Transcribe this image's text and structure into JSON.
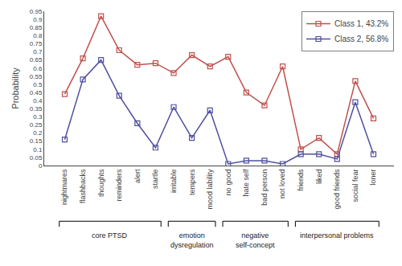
{
  "chart_data": {
    "type": "line",
    "categories": [
      "nightmares",
      "flashbacks",
      "thoughts",
      "reminders",
      "alert",
      "startle",
      "irritable",
      "tempers",
      "mood lability",
      "no good",
      "hate self",
      "bad person",
      "not loved",
      "friends",
      "liked",
      "good friends",
      "social fear",
      "loner"
    ],
    "series": [
      {
        "name": "Class 1, 43.2%",
        "color": "#c0504d",
        "marker": "square",
        "values": [
          0.44,
          0.66,
          0.92,
          0.71,
          0.62,
          0.63,
          0.57,
          0.68,
          0.61,
          0.67,
          0.45,
          0.37,
          0.61,
          0.1,
          0.17,
          0.07,
          0.52,
          0.29
        ]
      },
      {
        "name": "Class 2, 56.8%",
        "color": "#4f4fa0",
        "marker": "square",
        "values": [
          0.16,
          0.53,
          0.65,
          0.43,
          0.26,
          0.11,
          0.36,
          0.17,
          0.34,
          0.01,
          0.03,
          0.03,
          0.01,
          0.07,
          0.07,
          0.04,
          0.39,
          0.07
        ]
      }
    ],
    "ylabel": "Probability",
    "ylim": [
      0,
      0.95
    ],
    "yticks": [
      0,
      0.05,
      0.1,
      0.15,
      0.2,
      0.25,
      0.3,
      0.35,
      0.4,
      0.45,
      0.5,
      0.55,
      0.6,
      0.65,
      0.7,
      0.75,
      0.8,
      0.85,
      0.9,
      0.95
    ],
    "grid": false,
    "legend": "upper right",
    "groups": [
      {
        "label": "core PTSD",
        "first": "nightmares",
        "last": "startle"
      },
      {
        "label": "emotion\ndysregulation",
        "first": "irritable",
        "last": "mood lability"
      },
      {
        "label": "negative\nself-concept",
        "first": "no good",
        "last": "not loved"
      },
      {
        "label": "interpersonal problems",
        "first": "friends",
        "last": "loner"
      }
    ]
  }
}
